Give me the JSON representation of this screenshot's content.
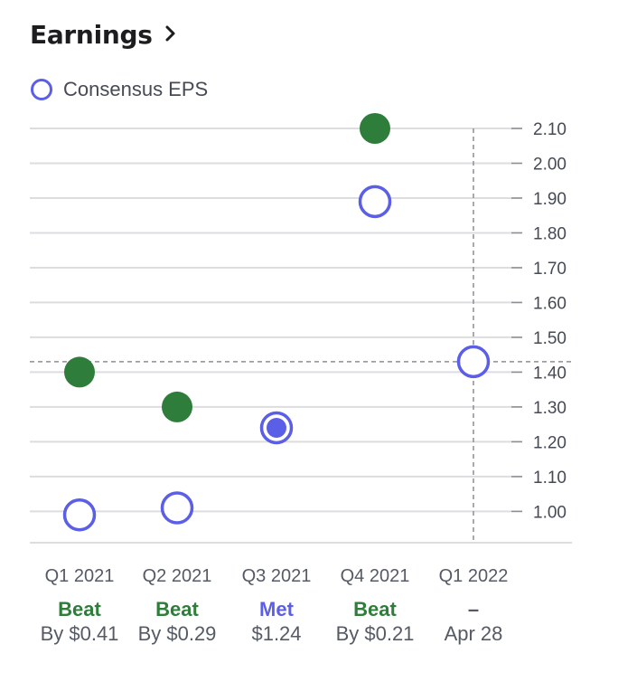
{
  "header": {
    "title": "Earnings"
  },
  "legend": {
    "label": "Consensus EPS"
  },
  "colors": {
    "estimate": "#5b5fe8",
    "beat": "#2e7d3a",
    "met": "#5b5fe8",
    "axis": "#8e8e93",
    "grid": "#dddde0",
    "refline": "#8e8e93"
  },
  "chart_data": {
    "type": "scatter",
    "categories": [
      "Q1 2021",
      "Q2 2021",
      "Q3 2021",
      "Q4 2021",
      "Q1 2022"
    ],
    "series": [
      {
        "name": "Consensus EPS",
        "marker": "hollow-circle",
        "values": [
          0.99,
          1.01,
          1.24,
          1.89,
          1.43
        ]
      },
      {
        "marker": "filled-circle",
        "values": [
          1.4,
          1.3,
          1.24,
          2.1,
          null
        ]
      }
    ],
    "yticks": [
      "1.00",
      "1.10",
      "1.20",
      "1.30",
      "1.40",
      "1.50",
      "1.60",
      "1.70",
      "1.80",
      "1.90",
      "2.00",
      "2.10"
    ],
    "ylim": [
      0.91,
      2.1
    ],
    "y_axis_position": "right",
    "grid": true,
    "reference_line": {
      "y": 1.43,
      "category": "Q1 2022"
    },
    "results": [
      {
        "status": "Beat",
        "detail": "By $0.41",
        "kind": "beat"
      },
      {
        "status": "Beat",
        "detail": "By $0.29",
        "kind": "beat"
      },
      {
        "status": "Met",
        "detail": "$1.24",
        "kind": "met"
      },
      {
        "status": "Beat",
        "detail": "By $0.21",
        "kind": "beat"
      },
      {
        "status": "–",
        "detail": "Apr 28",
        "kind": "upcoming"
      }
    ]
  }
}
